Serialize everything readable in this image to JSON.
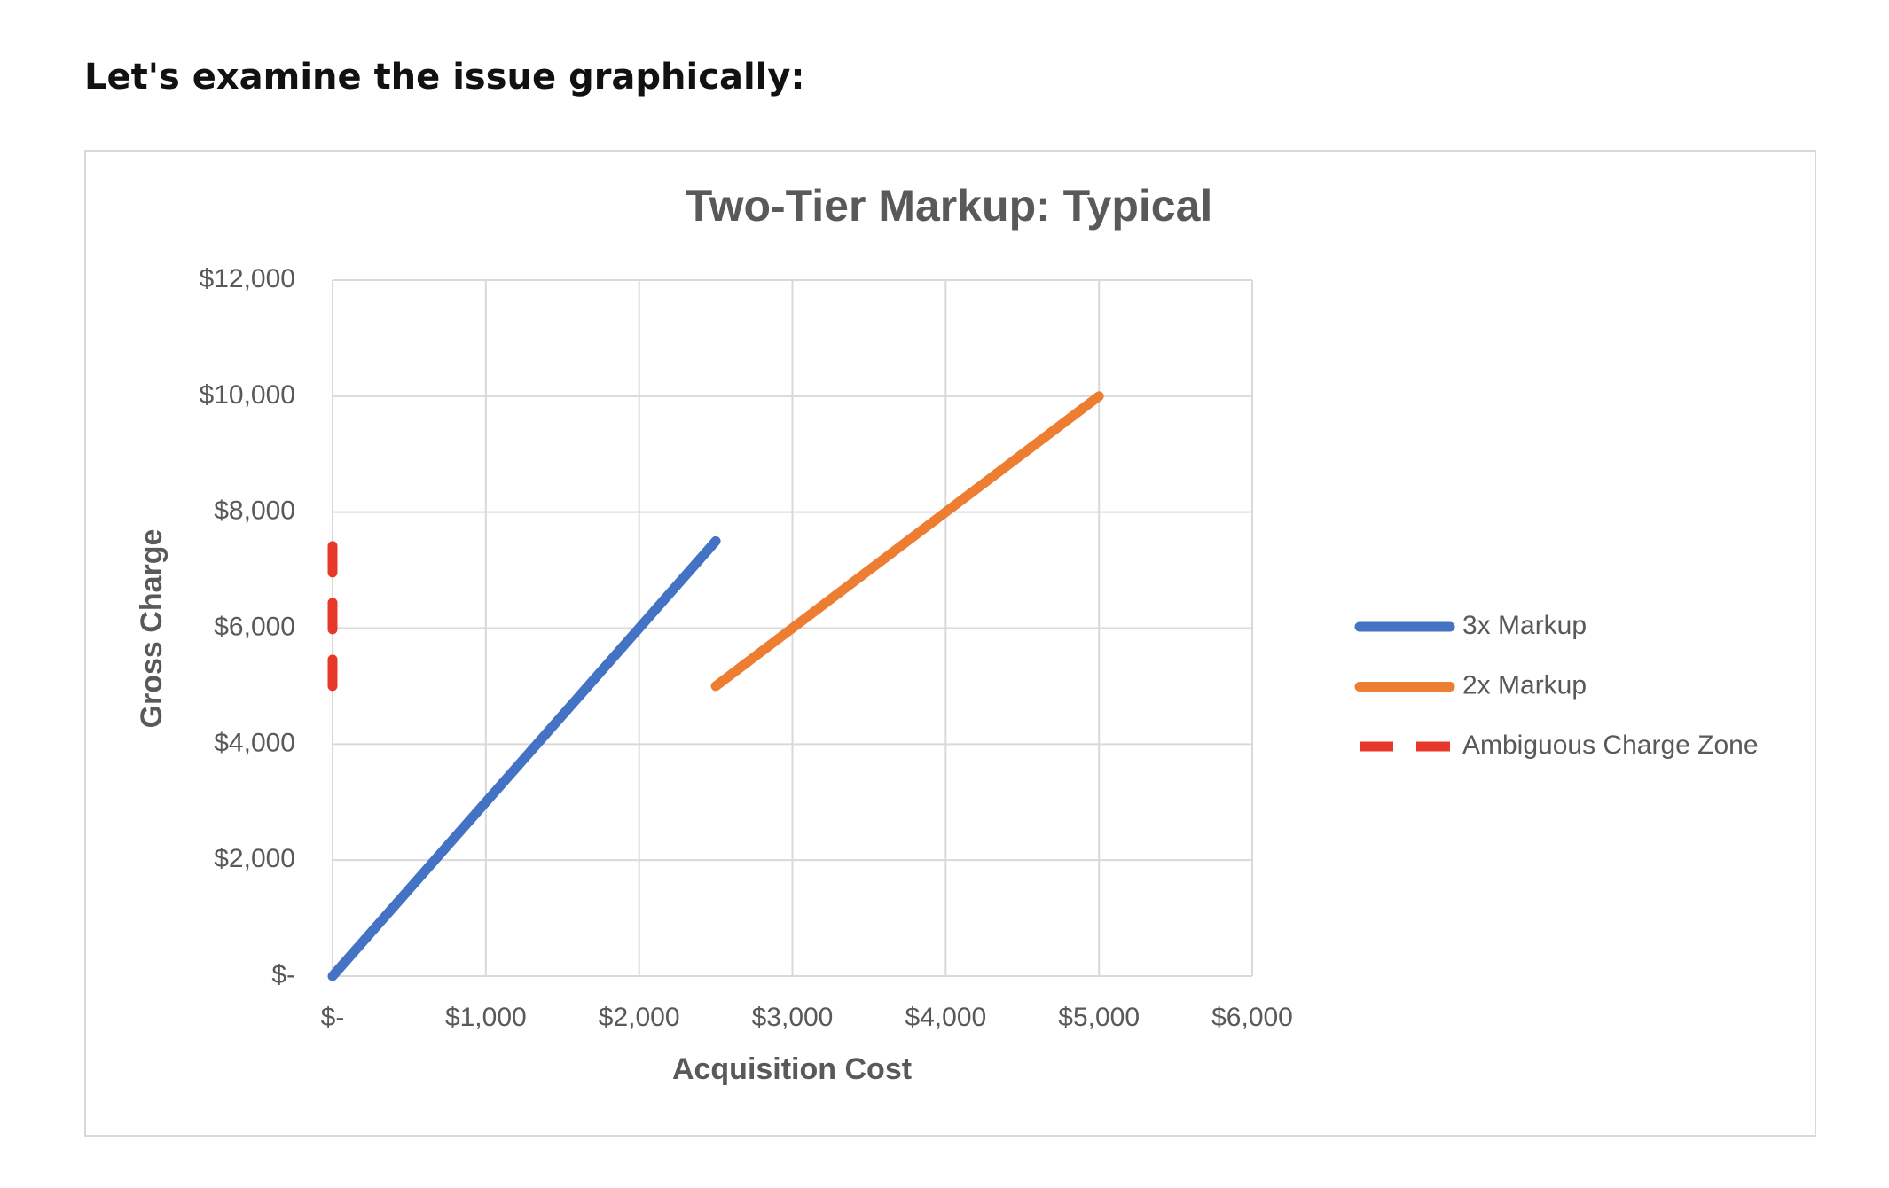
{
  "heading": "Let's examine the issue graphically:",
  "chart_data": {
    "type": "line",
    "title": "Two-Tier Markup: Typical",
    "x_label": "Acquisition Cost",
    "y_label": "Gross Charge",
    "xlim": [
      0,
      6000
    ],
    "ylim": [
      0,
      12000
    ],
    "xticks": [
      {
        "value": 0,
        "label": "$-"
      },
      {
        "value": 1000,
        "label": "$1,000"
      },
      {
        "value": 2000,
        "label": "$2,000"
      },
      {
        "value": 3000,
        "label": "$3,000"
      },
      {
        "value": 4000,
        "label": "$4,000"
      },
      {
        "value": 5000,
        "label": "$5,000"
      },
      {
        "value": 6000,
        "label": "$6,000"
      }
    ],
    "yticks": [
      {
        "value": 0,
        "label": "$-"
      },
      {
        "value": 2000,
        "label": "$2,000"
      },
      {
        "value": 4000,
        "label": "$4,000"
      },
      {
        "value": 6000,
        "label": "$6,000"
      },
      {
        "value": 8000,
        "label": "$8,000"
      },
      {
        "value": 10000,
        "label": "$10,000"
      },
      {
        "value": 12000,
        "label": "$12,000"
      }
    ],
    "grid": true,
    "legend": "right",
    "series": [
      {
        "name": "3x Markup",
        "color": "#4472c4",
        "dashed": false,
        "x": [
          0,
          2500
        ],
        "values": [
          0,
          7500
        ]
      },
      {
        "name": "2x Markup",
        "color": "#ed7d31",
        "dashed": false,
        "x": [
          2500,
          5000
        ],
        "values": [
          5000,
          10000
        ]
      },
      {
        "name": "Ambiguous Charge Zone",
        "color": "#e8382c",
        "dashed": true,
        "x": [
          0,
          0
        ],
        "values": [
          5000,
          7500
        ]
      }
    ]
  }
}
